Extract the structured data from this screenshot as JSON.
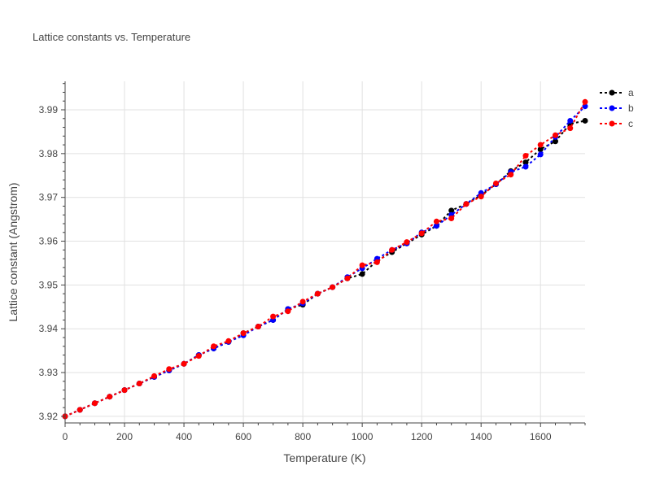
{
  "chart_data": {
    "type": "line",
    "title": "Lattice constants vs. Temperature",
    "xlabel": "Temperature (K)",
    "ylabel": "Lattice constant (Angstrom)",
    "xlim": [
      0,
      1750
    ],
    "ylim": [
      3.9185,
      3.9965
    ],
    "xticks": [
      0,
      200,
      400,
      600,
      800,
      1000,
      1200,
      1400,
      1600
    ],
    "xtick_labels": [
      "0",
      "200",
      "400",
      "600",
      "800",
      "1000",
      "1200",
      "1400",
      "1600"
    ],
    "yticks": [
      3.92,
      3.93,
      3.94,
      3.95,
      3.96,
      3.97,
      3.98,
      3.99
    ],
    "ytick_labels": [
      "3.92",
      "3.93",
      "3.94",
      "3.95",
      "3.96",
      "3.97",
      "3.98",
      "3.99"
    ],
    "grid": true,
    "legend_position": "top-right",
    "x": [
      0,
      50,
      100,
      150,
      200,
      250,
      300,
      350,
      400,
      450,
      500,
      550,
      600,
      650,
      700,
      750,
      800,
      850,
      900,
      950,
      1000,
      1050,
      1100,
      1150,
      1200,
      1250,
      1300,
      1350,
      1400,
      1450,
      1500,
      1550,
      1600,
      1650,
      1700,
      1750
    ],
    "series": [
      {
        "name": "a",
        "color": "#000000",
        "values": [
          3.92,
          3.9215,
          3.923,
          3.9245,
          3.926,
          3.9275,
          3.929,
          3.9305,
          3.932,
          3.934,
          3.9355,
          3.937,
          3.939,
          3.9405,
          3.942,
          3.9445,
          3.9455,
          3.948,
          3.9495,
          3.9515,
          3.9525,
          3.9555,
          3.9575,
          3.9595,
          3.9615,
          3.9635,
          3.967,
          3.9685,
          3.9705,
          3.973,
          3.976,
          3.978,
          3.981,
          3.9828,
          3.9868,
          3.9875
        ]
      },
      {
        "name": "b",
        "color": "#0000ff",
        "values": [
          3.92,
          3.9215,
          3.923,
          3.9245,
          3.926,
          3.9275,
          3.929,
          3.9305,
          3.932,
          3.934,
          3.9355,
          3.937,
          3.9385,
          3.9405,
          3.942,
          3.9445,
          3.9458,
          3.948,
          3.9495,
          3.9518,
          3.9538,
          3.956,
          3.958,
          3.9595,
          3.962,
          3.9635,
          3.966,
          3.9685,
          3.971,
          3.973,
          3.9758,
          3.977,
          3.9798,
          3.9838,
          3.9875,
          3.9908
        ]
      },
      {
        "name": "c",
        "color": "#ff0000",
        "values": [
          3.92,
          3.9215,
          3.923,
          3.9245,
          3.926,
          3.9275,
          3.9292,
          3.9308,
          3.932,
          3.9338,
          3.936,
          3.9372,
          3.939,
          3.9405,
          3.9428,
          3.944,
          3.9462,
          3.948,
          3.9495,
          3.9515,
          3.9545,
          3.9552,
          3.958,
          3.9598,
          3.9618,
          3.9645,
          3.9652,
          3.9685,
          3.9702,
          3.9732,
          3.9752,
          3.9795,
          3.982,
          3.9842,
          3.9858,
          3.9918
        ]
      }
    ]
  }
}
